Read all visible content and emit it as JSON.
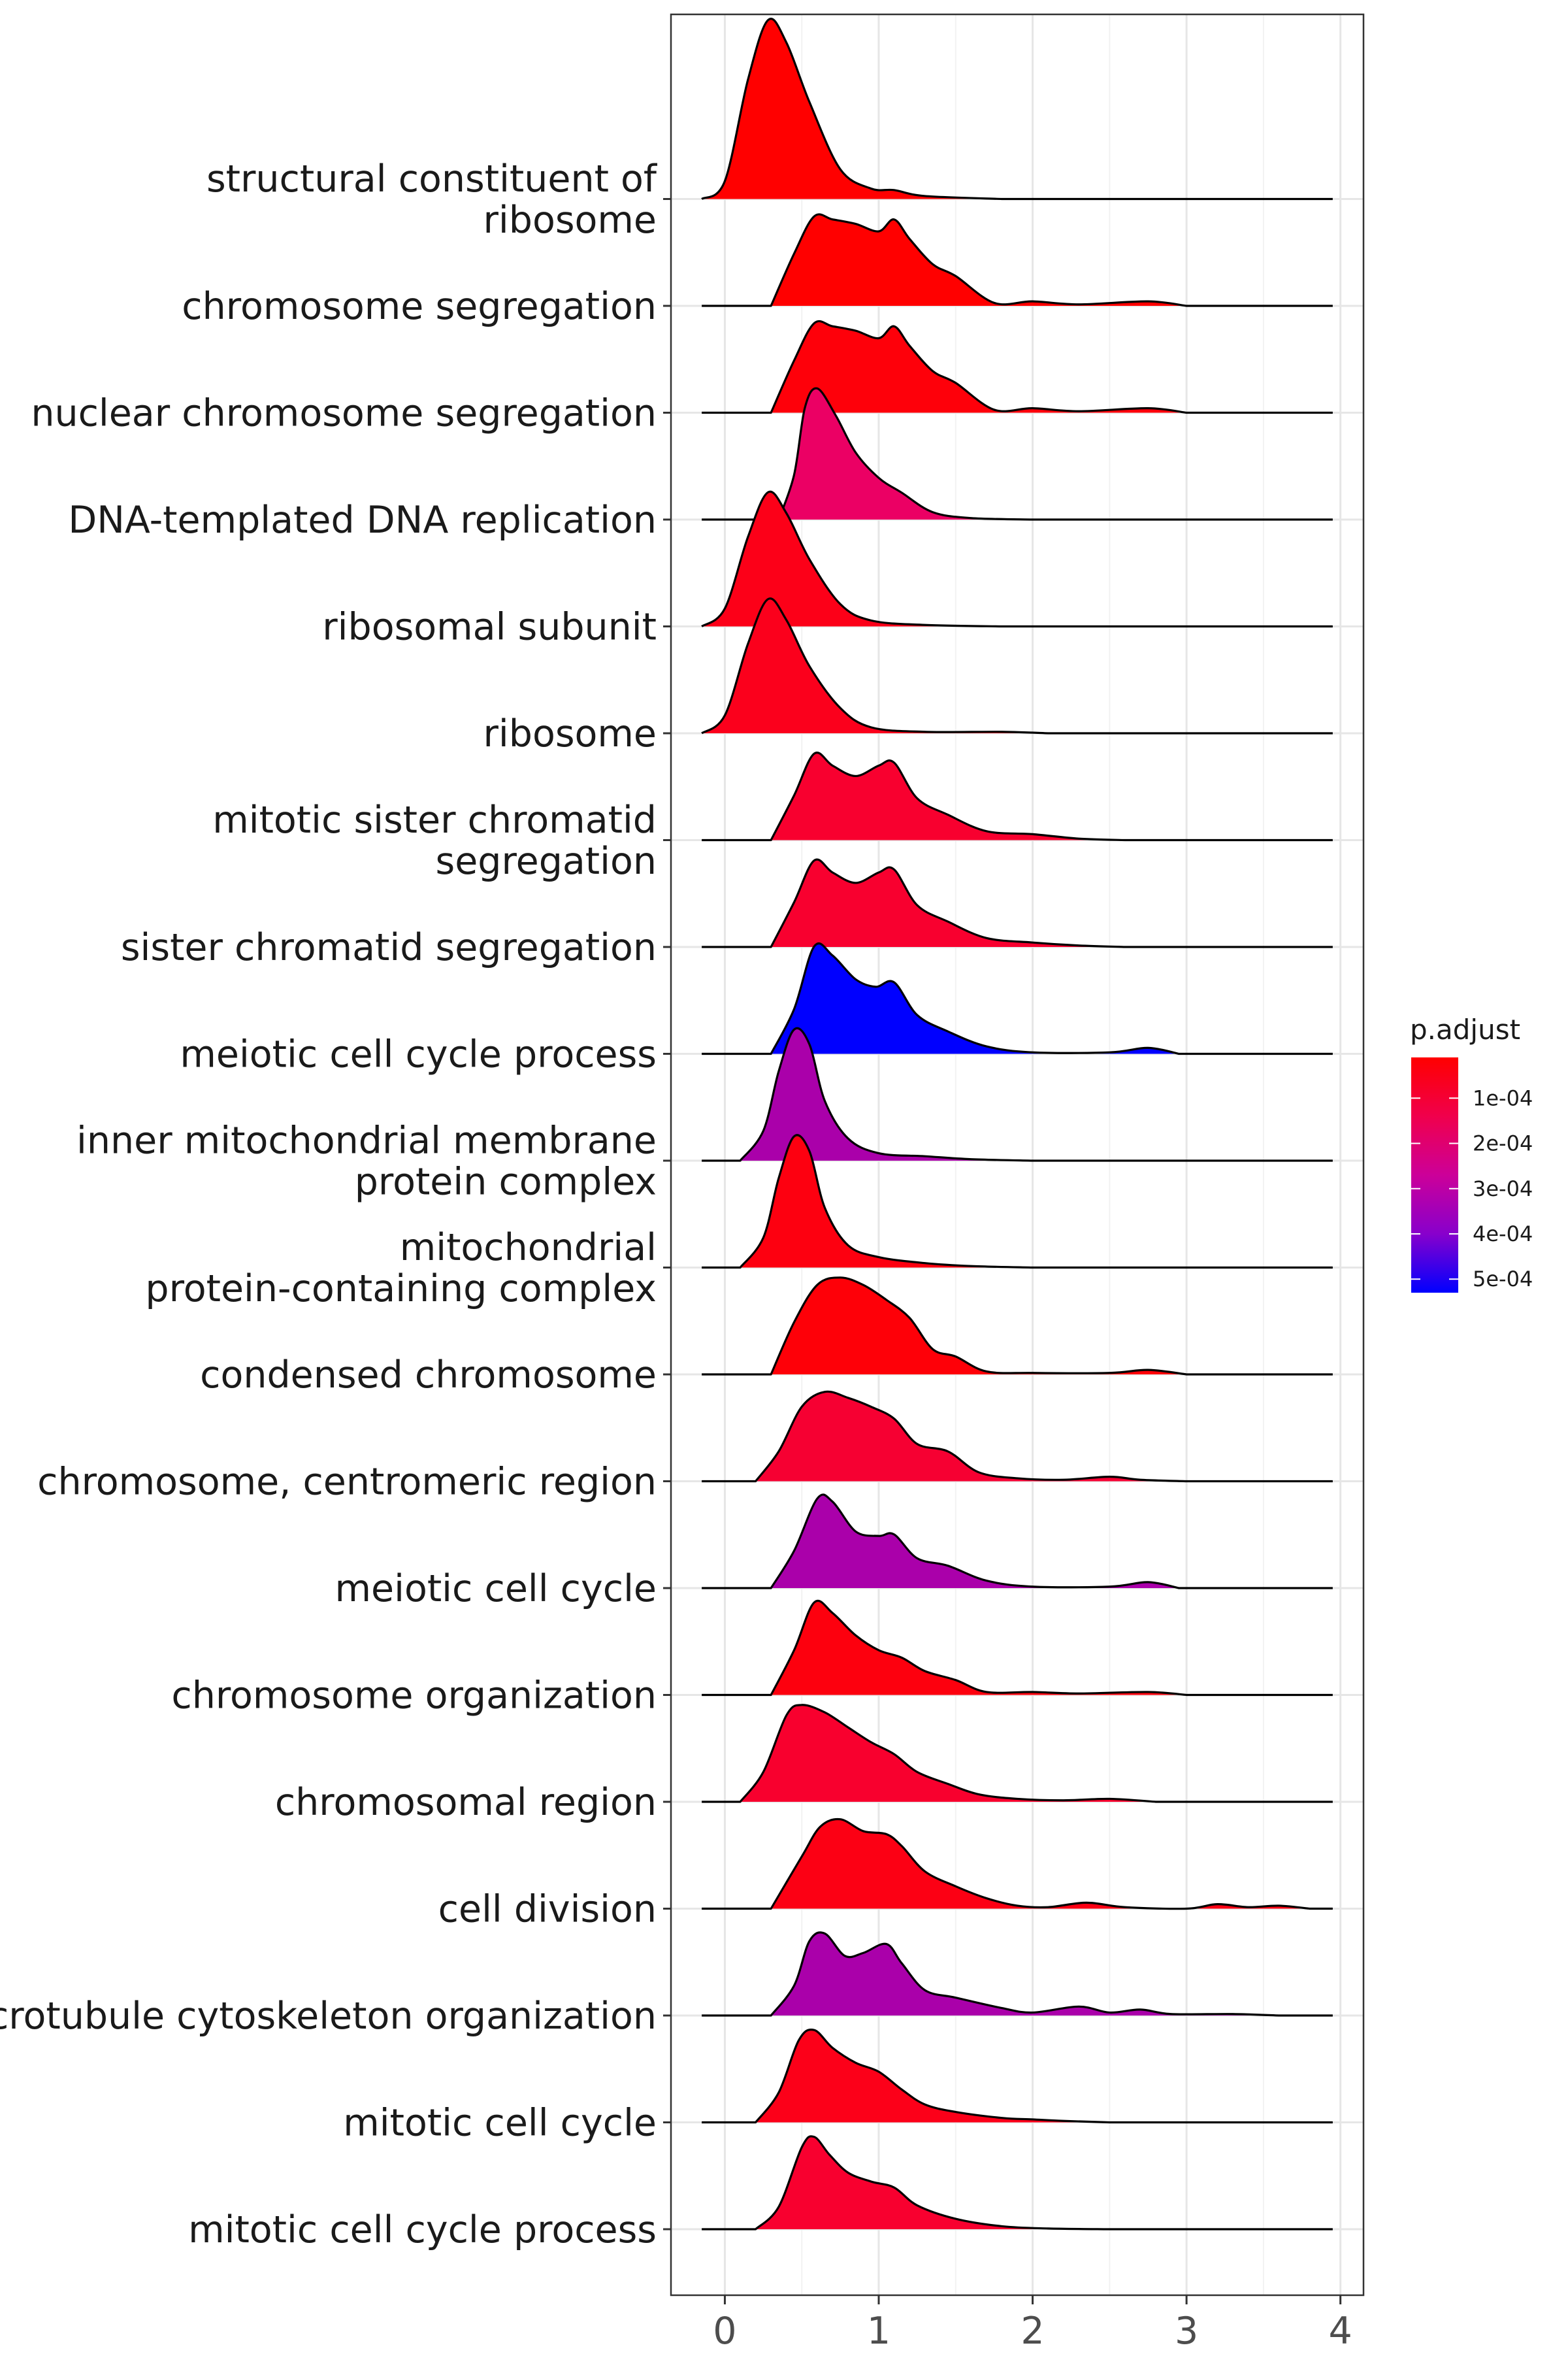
{
  "chart_data": {
    "type": "ridgeline",
    "title": "",
    "xlabel": "",
    "ylabel": "",
    "xlim": [
      -0.35,
      4.15
    ],
    "x_ticks": [
      0,
      1,
      2,
      3,
      4
    ],
    "x_tick_labels": [
      "0",
      "1",
      "2",
      "3",
      "4"
    ],
    "grid": true,
    "legend": {
      "title": "p.adjust",
      "position": "right",
      "labels": [
        "1e-04",
        "2e-04",
        "3e-04",
        "4e-04",
        "5e-04"
      ],
      "values": [
        0.0001,
        0.0002,
        0.0003,
        0.0004,
        0.0005
      ],
      "range": [
        1e-05,
        0.00053
      ],
      "colors": [
        "#FF0000",
        "#0000FF"
      ]
    },
    "series": [
      {
        "label": "mitotic cell cycle process",
        "p_adjust": 5e-05,
        "color": "#F8002F",
        "density": [
          [
            0.2,
            0
          ],
          [
            0.35,
            0.15
          ],
          [
            0.5,
            0.55
          ],
          [
            0.58,
            0.62
          ],
          [
            0.68,
            0.5
          ],
          [
            0.8,
            0.38
          ],
          [
            0.95,
            0.32
          ],
          [
            1.1,
            0.28
          ],
          [
            1.25,
            0.16
          ],
          [
            1.5,
            0.07
          ],
          [
            1.8,
            0.02
          ],
          [
            2.1,
            0.005
          ],
          [
            2.5,
            0
          ]
        ]
      },
      {
        "label": "mitotic cell cycle",
        "p_adjust": 3e-05,
        "color": "#FC0019",
        "density": [
          [
            0.2,
            0
          ],
          [
            0.35,
            0.2
          ],
          [
            0.48,
            0.55
          ],
          [
            0.58,
            0.62
          ],
          [
            0.7,
            0.5
          ],
          [
            0.85,
            0.4
          ],
          [
            1.0,
            0.34
          ],
          [
            1.15,
            0.22
          ],
          [
            1.3,
            0.12
          ],
          [
            1.5,
            0.07
          ],
          [
            1.8,
            0.03
          ],
          [
            2.0,
            0.02
          ],
          [
            2.2,
            0.01
          ],
          [
            2.5,
            0
          ]
        ]
      },
      {
        "label": "microtubule cytoskeleton organization",
        "p_adjust": 0.0003,
        "color": "#AA00AA",
        "density": [
          [
            0.3,
            0
          ],
          [
            0.45,
            0.2
          ],
          [
            0.55,
            0.5
          ],
          [
            0.65,
            0.55
          ],
          [
            0.78,
            0.4
          ],
          [
            0.9,
            0.42
          ],
          [
            1.05,
            0.48
          ],
          [
            1.15,
            0.35
          ],
          [
            1.3,
            0.17
          ],
          [
            1.5,
            0.12
          ],
          [
            1.8,
            0.05
          ],
          [
            2.0,
            0.02
          ],
          [
            2.3,
            0.06
          ],
          [
            2.5,
            0.02
          ],
          [
            2.7,
            0.04
          ],
          [
            2.9,
            0.01
          ],
          [
            3.3,
            0.01
          ],
          [
            3.6,
            0
          ]
        ]
      },
      {
        "label": "cell division",
        "p_adjust": 2e-05,
        "color": "#FC0014",
        "density": [
          [
            0.3,
            0
          ],
          [
            0.5,
            0.35
          ],
          [
            0.62,
            0.55
          ],
          [
            0.75,
            0.6
          ],
          [
            0.9,
            0.52
          ],
          [
            1.05,
            0.5
          ],
          [
            1.15,
            0.42
          ],
          [
            1.3,
            0.25
          ],
          [
            1.5,
            0.15
          ],
          [
            1.7,
            0.07
          ],
          [
            1.9,
            0.02
          ],
          [
            2.1,
            0.01
          ],
          [
            2.35,
            0.04
          ],
          [
            2.6,
            0.01
          ],
          [
            3.0,
            0
          ],
          [
            3.2,
            0.03
          ],
          [
            3.4,
            0.01
          ],
          [
            3.6,
            0.02
          ],
          [
            3.8,
            0
          ]
        ]
      },
      {
        "label": "chromosomal region",
        "p_adjust": 6e-05,
        "color": "#F8002E",
        "density": [
          [
            0.1,
            0
          ],
          [
            0.25,
            0.2
          ],
          [
            0.4,
            0.58
          ],
          [
            0.5,
            0.65
          ],
          [
            0.65,
            0.6
          ],
          [
            0.8,
            0.5
          ],
          [
            0.95,
            0.4
          ],
          [
            1.1,
            0.32
          ],
          [
            1.25,
            0.2
          ],
          [
            1.45,
            0.12
          ],
          [
            1.65,
            0.05
          ],
          [
            1.9,
            0.02
          ],
          [
            2.2,
            0.01
          ],
          [
            2.5,
            0.02
          ],
          [
            2.8,
            0
          ]
        ]
      },
      {
        "label": "chromosome organization",
        "p_adjust": 2e-05,
        "color": "#FD000E",
        "density": [
          [
            0.3,
            0
          ],
          [
            0.45,
            0.3
          ],
          [
            0.58,
            0.62
          ],
          [
            0.7,
            0.55
          ],
          [
            0.85,
            0.4
          ],
          [
            1.0,
            0.3
          ],
          [
            1.15,
            0.25
          ],
          [
            1.3,
            0.16
          ],
          [
            1.5,
            0.1
          ],
          [
            1.7,
            0.02
          ],
          [
            2.0,
            0.02
          ],
          [
            2.3,
            0.01
          ],
          [
            2.75,
            0.02
          ],
          [
            3.0,
            0
          ]
        ]
      },
      {
        "label": "meiotic cell cycle",
        "p_adjust": 0.0003,
        "color": "#AA00AA",
        "density": [
          [
            0.3,
            0
          ],
          [
            0.45,
            0.25
          ],
          [
            0.6,
            0.6
          ],
          [
            0.7,
            0.58
          ],
          [
            0.85,
            0.38
          ],
          [
            1.0,
            0.35
          ],
          [
            1.1,
            0.36
          ],
          [
            1.25,
            0.2
          ],
          [
            1.45,
            0.15
          ],
          [
            1.7,
            0.05
          ],
          [
            2.0,
            0.01
          ],
          [
            2.5,
            0.01
          ],
          [
            2.75,
            0.04
          ],
          [
            2.95,
            0
          ]
        ]
      },
      {
        "label": "chromosome, centromeric region",
        "p_adjust": 5e-05,
        "color": "#F60032",
        "density": [
          [
            0.2,
            0
          ],
          [
            0.35,
            0.2
          ],
          [
            0.5,
            0.5
          ],
          [
            0.65,
            0.6
          ],
          [
            0.8,
            0.56
          ],
          [
            0.95,
            0.5
          ],
          [
            1.1,
            0.42
          ],
          [
            1.25,
            0.25
          ],
          [
            1.45,
            0.2
          ],
          [
            1.65,
            0.06
          ],
          [
            1.9,
            0.02
          ],
          [
            2.2,
            0.01
          ],
          [
            2.5,
            0.03
          ],
          [
            2.7,
            0.01
          ],
          [
            3.0,
            0
          ]
        ]
      },
      {
        "label": "condensed chromosome",
        "p_adjust": 1e-05,
        "color": "#FE0008",
        "density": [
          [
            0.3,
            0
          ],
          [
            0.45,
            0.35
          ],
          [
            0.6,
            0.6
          ],
          [
            0.75,
            0.65
          ],
          [
            0.9,
            0.6
          ],
          [
            1.05,
            0.5
          ],
          [
            1.2,
            0.38
          ],
          [
            1.35,
            0.17
          ],
          [
            1.5,
            0.12
          ],
          [
            1.7,
            0.02
          ],
          [
            2.0,
            0.01
          ],
          [
            2.5,
            0.01
          ],
          [
            2.75,
            0.03
          ],
          [
            3.0,
            0
          ]
        ]
      },
      {
        "label": "mitochondrial\nprotein-containing complex",
        "p_adjust": 2e-05,
        "color": "#FD0010",
        "density": [
          [
            0.1,
            0
          ],
          [
            0.25,
            0.2
          ],
          [
            0.35,
            0.6
          ],
          [
            0.45,
            0.88
          ],
          [
            0.55,
            0.78
          ],
          [
            0.65,
            0.4
          ],
          [
            0.8,
            0.15
          ],
          [
            1.0,
            0.07
          ],
          [
            1.3,
            0.03
          ],
          [
            1.6,
            0.01
          ],
          [
            2.0,
            0
          ]
        ]
      },
      {
        "label": "inner mitochondrial membrane\nprotein complex",
        "p_adjust": 0.0003,
        "color": "#AA00AA",
        "density": [
          [
            0.1,
            0
          ],
          [
            0.25,
            0.2
          ],
          [
            0.35,
            0.6
          ],
          [
            0.45,
            0.88
          ],
          [
            0.55,
            0.78
          ],
          [
            0.65,
            0.4
          ],
          [
            0.8,
            0.15
          ],
          [
            1.0,
            0.05
          ],
          [
            1.3,
            0.03
          ],
          [
            1.6,
            0.01
          ],
          [
            2.0,
            0
          ]
        ]
      },
      {
        "label": "meiotic cell cycle process",
        "p_adjust": 0.00052,
        "color": "#0000FF",
        "density": [
          [
            0.3,
            0
          ],
          [
            0.45,
            0.3
          ],
          [
            0.58,
            0.72
          ],
          [
            0.7,
            0.66
          ],
          [
            0.85,
            0.5
          ],
          [
            0.98,
            0.45
          ],
          [
            1.1,
            0.48
          ],
          [
            1.25,
            0.26
          ],
          [
            1.45,
            0.15
          ],
          [
            1.7,
            0.05
          ],
          [
            2.0,
            0.01
          ],
          [
            2.5,
            0.01
          ],
          [
            2.75,
            0.04
          ],
          [
            2.95,
            0
          ]
        ]
      },
      {
        "label": "sister chromatid segregation",
        "p_adjust": 6e-05,
        "color": "#F8002F",
        "density": [
          [
            0.3,
            0
          ],
          [
            0.45,
            0.3
          ],
          [
            0.58,
            0.58
          ],
          [
            0.7,
            0.5
          ],
          [
            0.85,
            0.43
          ],
          [
            1.0,
            0.5
          ],
          [
            1.1,
            0.52
          ],
          [
            1.25,
            0.28
          ],
          [
            1.45,
            0.17
          ],
          [
            1.7,
            0.06
          ],
          [
            2.0,
            0.03
          ],
          [
            2.3,
            0.01
          ],
          [
            2.6,
            0
          ]
        ]
      },
      {
        "label": "mitotic sister chromatid\nsegregation",
        "p_adjust": 6e-05,
        "color": "#F8002F",
        "density": [
          [
            0.3,
            0
          ],
          [
            0.45,
            0.3
          ],
          [
            0.58,
            0.58
          ],
          [
            0.7,
            0.5
          ],
          [
            0.85,
            0.43
          ],
          [
            1.0,
            0.5
          ],
          [
            1.1,
            0.52
          ],
          [
            1.25,
            0.28
          ],
          [
            1.45,
            0.17
          ],
          [
            1.7,
            0.06
          ],
          [
            2.0,
            0.04
          ],
          [
            2.3,
            0.01
          ],
          [
            2.6,
            0
          ]
        ]
      },
      {
        "label": "ribosome",
        "p_adjust": 3e-05,
        "color": "#FB001C",
        "density": [
          [
            -0.15,
            0
          ],
          [
            0.0,
            0.12
          ],
          [
            0.15,
            0.6
          ],
          [
            0.28,
            0.9
          ],
          [
            0.4,
            0.76
          ],
          [
            0.55,
            0.45
          ],
          [
            0.75,
            0.17
          ],
          [
            0.95,
            0.04
          ],
          [
            1.3,
            0.01
          ],
          [
            1.8,
            0.01
          ],
          [
            2.1,
            0
          ]
        ]
      },
      {
        "label": "ribosomal subunit",
        "p_adjust": 2e-05,
        "color": "#FC0018",
        "density": [
          [
            -0.15,
            0
          ],
          [
            0.0,
            0.12
          ],
          [
            0.15,
            0.6
          ],
          [
            0.28,
            0.9
          ],
          [
            0.4,
            0.76
          ],
          [
            0.55,
            0.45
          ],
          [
            0.75,
            0.15
          ],
          [
            0.95,
            0.04
          ],
          [
            1.3,
            0.01
          ],
          [
            1.8,
            0
          ]
        ]
      },
      {
        "label": "DNA-templated DNA replication",
        "p_adjust": 0.00012,
        "color": "#EB0064",
        "density": [
          [
            0.35,
            0
          ],
          [
            0.45,
            0.3
          ],
          [
            0.52,
            0.75
          ],
          [
            0.6,
            0.88
          ],
          [
            0.72,
            0.7
          ],
          [
            0.85,
            0.45
          ],
          [
            1.0,
            0.28
          ],
          [
            1.15,
            0.18
          ],
          [
            1.35,
            0.05
          ],
          [
            1.6,
            0.01
          ],
          [
            2.0,
            0
          ]
        ]
      },
      {
        "label": "nuclear chromosome segregation",
        "p_adjust": 2e-05,
        "color": "#FE000A",
        "density": [
          [
            0.3,
            0
          ],
          [
            0.45,
            0.35
          ],
          [
            0.58,
            0.6
          ],
          [
            0.7,
            0.58
          ],
          [
            0.85,
            0.55
          ],
          [
            1.0,
            0.5
          ],
          [
            1.1,
            0.58
          ],
          [
            1.2,
            0.45
          ],
          [
            1.35,
            0.28
          ],
          [
            1.5,
            0.2
          ],
          [
            1.75,
            0.02
          ],
          [
            2.0,
            0.03
          ],
          [
            2.3,
            0.01
          ],
          [
            2.75,
            0.03
          ],
          [
            3.0,
            0
          ]
        ]
      },
      {
        "label": "chromosome segregation",
        "p_adjust": 1e-05,
        "color": "#FF0000",
        "density": [
          [
            0.3,
            0
          ],
          [
            0.45,
            0.35
          ],
          [
            0.58,
            0.6
          ],
          [
            0.7,
            0.58
          ],
          [
            0.85,
            0.55
          ],
          [
            1.0,
            0.5
          ],
          [
            1.1,
            0.58
          ],
          [
            1.2,
            0.45
          ],
          [
            1.35,
            0.28
          ],
          [
            1.5,
            0.2
          ],
          [
            1.75,
            0.02
          ],
          [
            2.0,
            0.03
          ],
          [
            2.3,
            0.01
          ],
          [
            2.75,
            0.03
          ],
          [
            3.0,
            0
          ]
        ]
      },
      {
        "label": "structural constituent of\nribosome",
        "p_adjust": 1e-05,
        "color": "#FF0000",
        "density": [
          [
            -0.15,
            0
          ],
          [
            0.0,
            0.12
          ],
          [
            0.15,
            0.8
          ],
          [
            0.28,
            1.2
          ],
          [
            0.4,
            1.05
          ],
          [
            0.55,
            0.65
          ],
          [
            0.75,
            0.2
          ],
          [
            0.95,
            0.07
          ],
          [
            1.1,
            0.06
          ],
          [
            1.3,
            0.02
          ],
          [
            1.8,
            0
          ]
        ]
      }
    ]
  }
}
